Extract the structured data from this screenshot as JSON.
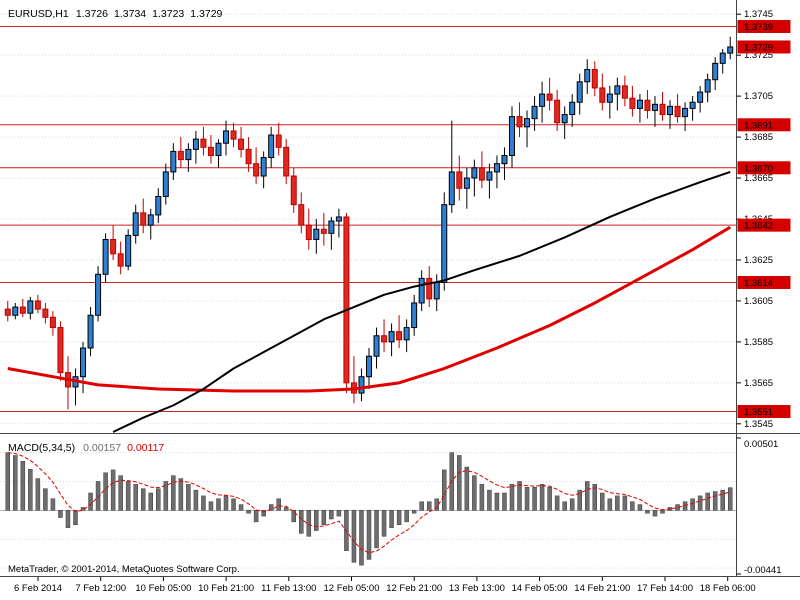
{
  "header": {
    "symbol": "EURUSD,H1",
    "open": "1.3726",
    "high": "1.3734",
    "low": "1.3723",
    "close": "1.3729"
  },
  "macd_header": {
    "label": "MACD(5,34,5)",
    "main_value": "0.00157",
    "signal_value": "0.00117"
  },
  "watermark": "MetaTrader, © 2001-2014, MetaQuotes Software Corp.",
  "colors": {
    "bull_body": "#2f7fd2",
    "bull_line": "#000000",
    "bear_body": "#dc2a20",
    "bear_line": "#c00000",
    "ma_slow": "#000000",
    "ma_trend": "#e00000",
    "hline": "#cc2222",
    "tag_bg": "#d40000",
    "tag_text": "#ffffff",
    "histogram": "#6e6e6e",
    "histogram_edge": "#3c3c3c",
    "signal": "#e00000",
    "grid": "#d9d9d9",
    "axis_text": "#000000",
    "watermark": "#8a8a8a",
    "separator": "#444444"
  },
  "chart_data": {
    "type": "candlestick",
    "symbol": "EURUSD",
    "timeframe": "H1",
    "x_labels": [
      "6 Feb 2014",
      "7 Feb 12:00",
      "10 Feb 05:00",
      "10 Feb 21:00",
      "11 Feb 13:00",
      "12 Feb 05:00",
      "12 Feb 21:00",
      "13 Feb 13:00",
      "14 Feb 05:00",
      "14 Feb 21:00",
      "17 Feb 14:00",
      "18 Feb 06:00"
    ],
    "y_axis": {
      "range": [
        1.3541,
        1.3749
      ],
      "ticks": [
        1.3745,
        1.3725,
        1.3705,
        1.3685,
        1.3665,
        1.3645,
        1.3625,
        1.3605,
        1.3585,
        1.3565,
        1.3545
      ]
    },
    "hlines": [
      1.3739,
      1.3691,
      1.367,
      1.3642,
      1.3614,
      1.3551
    ],
    "price_tags": [
      "1.3739",
      "1.3729",
      "1.3691",
      "1.3670",
      "1.3642",
      "1.3614",
      "1.3551"
    ],
    "candles": [
      [
        1.3601,
        1.3605,
        1.3595,
        1.3598
      ],
      [
        1.3598,
        1.3604,
        1.3596,
        1.3602
      ],
      [
        1.3602,
        1.3606,
        1.3597,
        1.3599
      ],
      [
        1.3599,
        1.3607,
        1.3596,
        1.3605
      ],
      [
        1.3605,
        1.3608,
        1.3599,
        1.3601
      ],
      [
        1.3601,
        1.3604,
        1.3594,
        1.3597
      ],
      [
        1.3597,
        1.36,
        1.3588,
        1.3592
      ],
      [
        1.3592,
        1.3595,
        1.3566,
        1.357
      ],
      [
        1.357,
        1.3578,
        1.3552,
        1.3563
      ],
      [
        1.3563,
        1.3572,
        1.3554,
        1.3568
      ],
      [
        1.3568,
        1.3585,
        1.356,
        1.3582
      ],
      [
        1.3582,
        1.3602,
        1.3578,
        1.3598
      ],
      [
        1.3598,
        1.3622,
        1.3595,
        1.3618
      ],
      [
        1.3618,
        1.3638,
        1.3614,
        1.3635
      ],
      [
        1.3635,
        1.3642,
        1.3625,
        1.3628
      ],
      [
        1.3628,
        1.3634,
        1.3618,
        1.3622
      ],
      [
        1.3622,
        1.364,
        1.362,
        1.3637
      ],
      [
        1.3637,
        1.3652,
        1.3633,
        1.3648
      ],
      [
        1.3648,
        1.3655,
        1.3638,
        1.3642
      ],
      [
        1.3642,
        1.365,
        1.3635,
        1.3647
      ],
      [
        1.3647,
        1.366,
        1.3643,
        1.3656
      ],
      [
        1.3656,
        1.3672,
        1.3652,
        1.3668
      ],
      [
        1.3668,
        1.3682,
        1.3664,
        1.3678
      ],
      [
        1.3678,
        1.3685,
        1.367,
        1.3674
      ],
      [
        1.3674,
        1.3682,
        1.3668,
        1.3679
      ],
      [
        1.3679,
        1.3688,
        1.3672,
        1.3684
      ],
      [
        1.3684,
        1.369,
        1.3676,
        1.368
      ],
      [
        1.368,
        1.3686,
        1.3672,
        1.3676
      ],
      [
        1.3676,
        1.3684,
        1.367,
        1.3682
      ],
      [
        1.3682,
        1.3693,
        1.3676,
        1.3688
      ],
      [
        1.3688,
        1.3692,
        1.368,
        1.3684
      ],
      [
        1.3684,
        1.369,
        1.3675,
        1.3679
      ],
      [
        1.3679,
        1.3685,
        1.3668,
        1.3672
      ],
      [
        1.3672,
        1.368,
        1.3662,
        1.3666
      ],
      [
        1.3666,
        1.3678,
        1.366,
        1.3675
      ],
      [
        1.3675,
        1.369,
        1.367,
        1.3686
      ],
      [
        1.3686,
        1.3692,
        1.3676,
        1.368
      ],
      [
        1.368,
        1.3684,
        1.3662,
        1.3666
      ],
      [
        1.3666,
        1.367,
        1.3648,
        1.3652
      ],
      [
        1.3652,
        1.3658,
        1.3638,
        1.3642
      ],
      [
        1.3642,
        1.365,
        1.363,
        1.3635
      ],
      [
        1.3635,
        1.3645,
        1.3628,
        1.364
      ],
      [
        1.364,
        1.3648,
        1.3632,
        1.3638
      ],
      [
        1.3638,
        1.3646,
        1.363,
        1.3644
      ],
      [
        1.3644,
        1.365,
        1.3636,
        1.3646
      ],
      [
        1.3646,
        1.3648,
        1.356,
        1.3565
      ],
      [
        1.3565,
        1.3578,
        1.3555,
        1.356
      ],
      [
        1.356,
        1.3572,
        1.3556,
        1.3568
      ],
      [
        1.3568,
        1.3582,
        1.3562,
        1.3578
      ],
      [
        1.3578,
        1.3592,
        1.3572,
        1.3588
      ],
      [
        1.3588,
        1.3596,
        1.358,
        1.3585
      ],
      [
        1.3585,
        1.3594,
        1.3578,
        1.359
      ],
      [
        1.359,
        1.3598,
        1.3582,
        1.3586
      ],
      [
        1.3586,
        1.3596,
        1.358,
        1.3592
      ],
      [
        1.3592,
        1.3608,
        1.3588,
        1.3604
      ],
      [
        1.3604,
        1.362,
        1.36,
        1.3616
      ],
      [
        1.3616,
        1.3622,
        1.3602,
        1.3606
      ],
      [
        1.3606,
        1.3618,
        1.36,
        1.3614
      ],
      [
        1.3614,
        1.3658,
        1.361,
        1.3652
      ],
      [
        1.3652,
        1.3693,
        1.3648,
        1.3668
      ],
      [
        1.3668,
        1.3676,
        1.3654,
        1.366
      ],
      [
        1.366,
        1.367,
        1.365,
        1.3665
      ],
      [
        1.3665,
        1.3674,
        1.3656,
        1.367
      ],
      [
        1.367,
        1.3678,
        1.366,
        1.3664
      ],
      [
        1.3664,
        1.3672,
        1.3655,
        1.3668
      ],
      [
        1.3668,
        1.3676,
        1.366,
        1.3672
      ],
      [
        1.3672,
        1.368,
        1.3664,
        1.3676
      ],
      [
        1.3676,
        1.37,
        1.367,
        1.3695
      ],
      [
        1.3695,
        1.3702,
        1.3685,
        1.369
      ],
      [
        1.369,
        1.3698,
        1.368,
        1.3694
      ],
      [
        1.3694,
        1.3705,
        1.3688,
        1.37
      ],
      [
        1.37,
        1.3712,
        1.3692,
        1.3706
      ],
      [
        1.3706,
        1.3714,
        1.3698,
        1.3703
      ],
      [
        1.3703,
        1.3708,
        1.3688,
        1.3692
      ],
      [
        1.3692,
        1.37,
        1.3684,
        1.3696
      ],
      [
        1.3696,
        1.3706,
        1.369,
        1.3702
      ],
      [
        1.3702,
        1.3716,
        1.3696,
        1.3712
      ],
      [
        1.3712,
        1.3723,
        1.3706,
        1.3718
      ],
      [
        1.3718,
        1.3722,
        1.3705,
        1.3709
      ],
      [
        1.3709,
        1.3716,
        1.3698,
        1.3702
      ],
      [
        1.3702,
        1.371,
        1.3694,
        1.3706
      ],
      [
        1.3706,
        1.3714,
        1.3698,
        1.371
      ],
      [
        1.371,
        1.3715,
        1.37,
        1.3704
      ],
      [
        1.3704,
        1.371,
        1.3695,
        1.3699
      ],
      [
        1.3699,
        1.3706,
        1.3692,
        1.3703
      ],
      [
        1.3703,
        1.3708,
        1.3694,
        1.3698
      ],
      [
        1.3698,
        1.3705,
        1.369,
        1.3701
      ],
      [
        1.3701,
        1.3707,
        1.3693,
        1.3696
      ],
      [
        1.3696,
        1.3703,
        1.3689,
        1.37
      ],
      [
        1.37,
        1.3706,
        1.3692,
        1.3695
      ],
      [
        1.3695,
        1.3702,
        1.3688,
        1.3699
      ],
      [
        1.3699,
        1.3705,
        1.3693,
        1.3702
      ],
      [
        1.3702,
        1.371,
        1.3697,
        1.3707
      ],
      [
        1.3707,
        1.3716,
        1.3702,
        1.3713
      ],
      [
        1.3713,
        1.3724,
        1.3708,
        1.3721
      ],
      [
        1.3721,
        1.3728,
        1.3716,
        1.3726
      ],
      [
        1.3726,
        1.3734,
        1.3723,
        1.3729
      ]
    ],
    "ma_slow_black": {
      "anchors": [
        [
          14,
          1.3541
        ],
        [
          18,
          1.3548
        ],
        [
          22,
          1.3554
        ],
        [
          26,
          1.3562
        ],
        [
          30,
          1.3572
        ],
        [
          34,
          1.358
        ],
        [
          38,
          1.3588
        ],
        [
          42,
          1.3596
        ],
        [
          46,
          1.3602
        ],
        [
          50,
          1.3608
        ],
        [
          54,
          1.3612
        ],
        [
          58,
          1.3615
        ],
        [
          62,
          1.362
        ],
        [
          68,
          1.3627
        ],
        [
          74,
          1.3636
        ],
        [
          80,
          1.3646
        ],
        [
          86,
          1.3655
        ],
        [
          92,
          1.3663
        ],
        [
          96,
          1.3668
        ]
      ]
    },
    "ma_trend_red": {
      "anchors": [
        [
          0,
          1.3572
        ],
        [
          6,
          1.3568
        ],
        [
          12,
          1.3564
        ],
        [
          20,
          1.3562
        ],
        [
          30,
          1.3561
        ],
        [
          40,
          1.3561
        ],
        [
          46,
          1.3562
        ],
        [
          52,
          1.3565
        ],
        [
          58,
          1.3572
        ],
        [
          65,
          1.3582
        ],
        [
          72,
          1.3593
        ],
        [
          78,
          1.3604
        ],
        [
          85,
          1.3618
        ],
        [
          91,
          1.363
        ],
        [
          96,
          1.3641
        ]
      ]
    },
    "macd": {
      "range": [
        -0.00441,
        0.00501
      ],
      "axis_labels": [
        "0.00501",
        "-0.00441"
      ],
      "last_main": 0.00157,
      "last_signal": 0.00117,
      "histogram": [
        0.004,
        0.0038,
        0.0034,
        0.00285,
        0.0022,
        0.0015,
        0.0008,
        -0.0005,
        -0.0012,
        -0.001,
        0.0002,
        0.0012,
        0.002,
        0.0026,
        0.0028,
        0.0024,
        0.002,
        0.0018,
        0.0015,
        0.0012,
        0.0015,
        0.002,
        0.0024,
        0.0022,
        0.0018,
        0.0014,
        0.001,
        0.0006,
        0.0008,
        0.001,
        0.0008,
        0.0004,
        -0.0002,
        -0.0008,
        -0.0004,
        0.0004,
        0.0008,
        0.0002,
        -0.0008,
        -0.0016,
        -0.0018,
        -0.0014,
        -0.001,
        -0.0006,
        -0.0004,
        -0.0028,
        -0.0036,
        -0.0038,
        -0.0034,
        -0.0026,
        -0.0018,
        -0.0012,
        -0.001,
        -0.0008,
        -0.0002,
        0.0006,
        0.0006,
        0.0008,
        0.0028,
        0.004,
        0.0038,
        0.003,
        0.0024,
        0.0018,
        0.0014,
        0.0012,
        0.0012,
        0.0018,
        0.002,
        0.0016,
        0.0016,
        0.0018,
        0.0016,
        0.001,
        0.0006,
        0.0008,
        0.0014,
        0.002,
        0.0018,
        0.0012,
        0.0008,
        0.001,
        0.001,
        0.0006,
        0.0004,
        -0.0002,
        -0.0004,
        -0.0002,
        0.0002,
        0.0004,
        0.0006,
        0.0008,
        0.001,
        0.0012,
        0.0013,
        0.0014,
        0.00157
      ]
    }
  }
}
